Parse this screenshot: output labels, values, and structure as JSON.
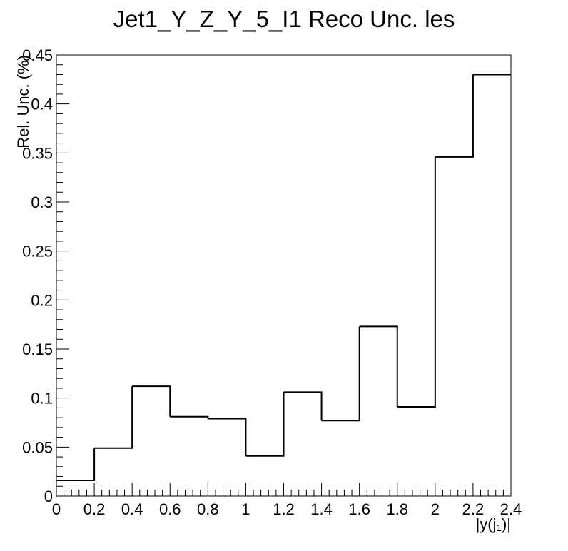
{
  "chart_data": {
    "type": "step",
    "title": "Jet1_Y_Z_Y_5_I1 Reco Unc. les",
    "xlabel": "|y(j₁)|",
    "ylabel": "Rel. Unc. (%)",
    "xlim": [
      0,
      2.4
    ],
    "ylim": [
      0,
      0.45
    ],
    "x_ticks": [
      "0",
      "0.2",
      "0.4",
      "0.6",
      "0.8",
      "1",
      "1.2",
      "1.4",
      "1.6",
      "1.8",
      "2",
      "2.2",
      "2.4"
    ],
    "y_ticks": [
      "0",
      "0.05",
      "0.1",
      "0.15",
      "0.2",
      "0.25",
      "0.3",
      "0.35",
      "0.4",
      "0.45"
    ],
    "bin_edges": [
      0,
      0.2,
      0.4,
      0.6,
      0.8,
      1.0,
      1.2,
      1.4,
      1.6,
      1.8,
      2.0,
      2.2,
      2.4
    ],
    "values": [
      0.016,
      0.049,
      0.112,
      0.081,
      0.079,
      0.041,
      0.106,
      0.077,
      0.173,
      0.091,
      0.346,
      0.43
    ],
    "grid": false,
    "legend": "none"
  }
}
